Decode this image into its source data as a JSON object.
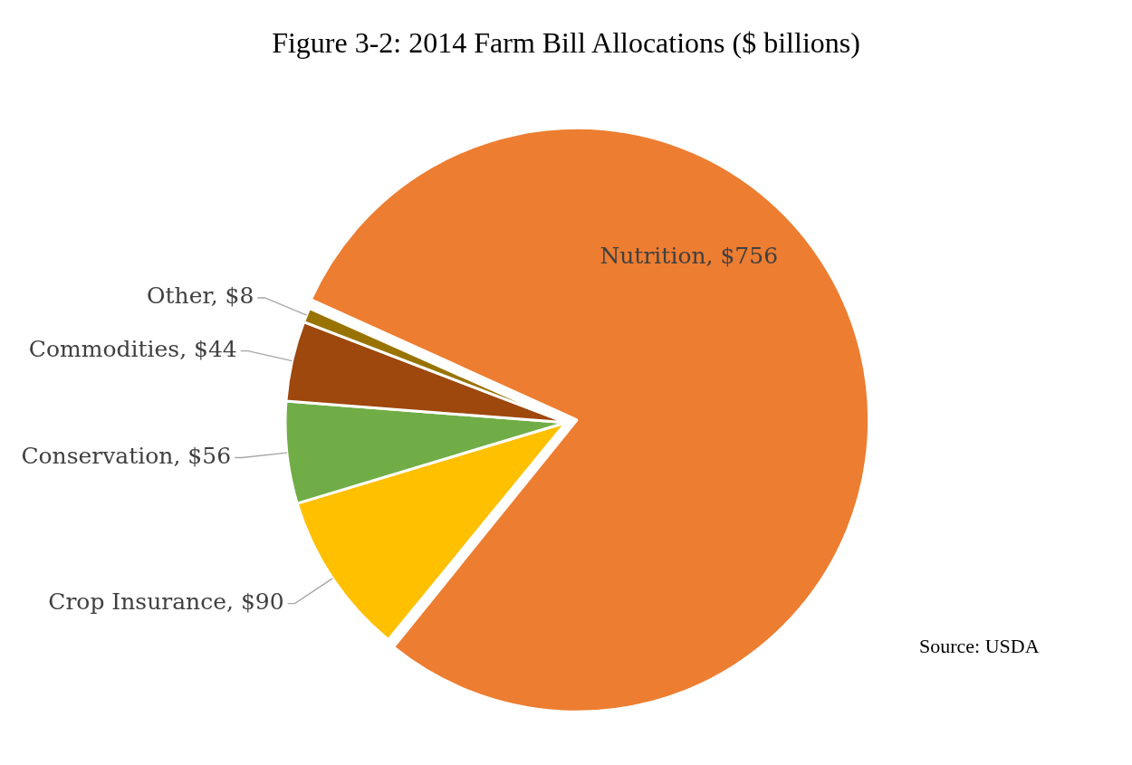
{
  "chart_data": {
    "type": "pie",
    "title": "Figure 3-2: 2014 Farm Bill Allocations ($ billions)",
    "categories": [
      "Nutrition",
      "Crop Insurance",
      "Conservation",
      "Commodities",
      "Other"
    ],
    "values": [
      756,
      90,
      56,
      44,
      8
    ],
    "value_labels": [
      "$756",
      "$90",
      "$56",
      "$44",
      "$8"
    ],
    "colors": [
      "#ed7d31",
      "#ffc000",
      "#70ad47",
      "#9e480e",
      "#997300"
    ],
    "legend": false,
    "annotations": [
      "Source: USDA"
    ]
  }
}
